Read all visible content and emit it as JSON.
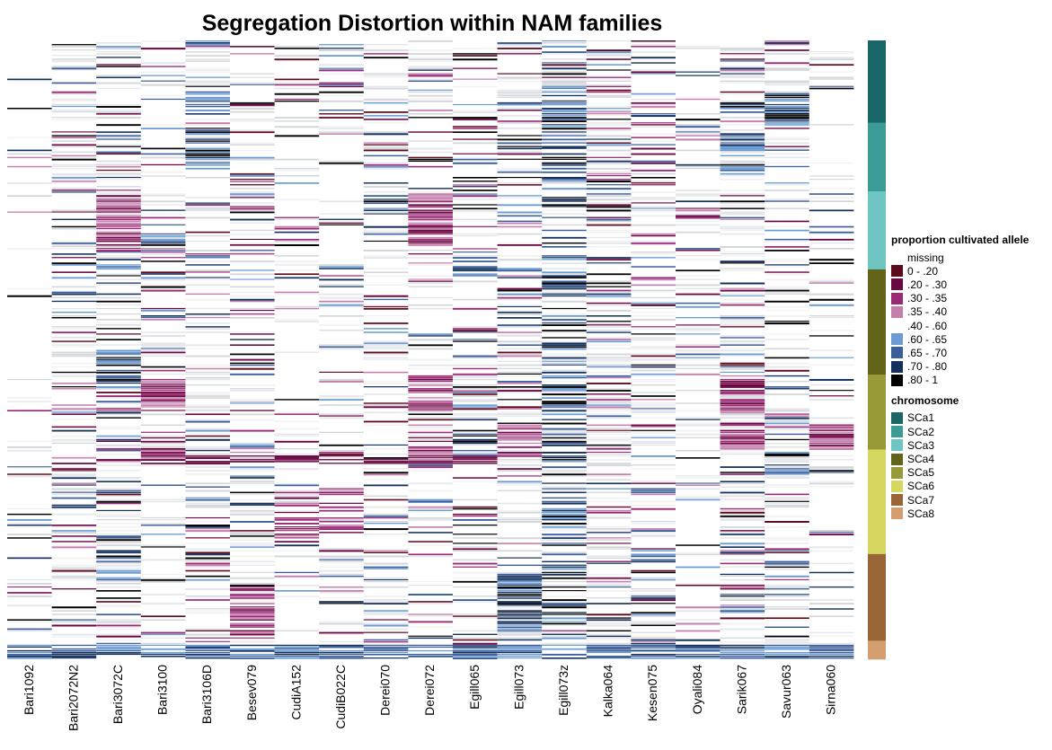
{
  "chart_data": {
    "type": "heatmap",
    "title": "Segregation Distortion within NAM families",
    "families": [
      "Bari1092",
      "Bari2072N2",
      "Bari3072C",
      "Bari3100",
      "Bari3106D",
      "Besev079",
      "CudiA152",
      "CudiB022C",
      "Derei070",
      "Derei072",
      "Egill065",
      "Egill073",
      "Egill073z",
      "Kalka064",
      "Kesen075",
      "Oyali084",
      "Sarik067",
      "Savur063",
      "Sirna060"
    ],
    "legend_proportion": {
      "title": "proportion cultivated allele",
      "bins": [
        {
          "label": "missing",
          "color": "#ffffff"
        },
        {
          "label": "0 - .20",
          "color": "#5e0a1e"
        },
        {
          "label": ".20 - .30",
          "color": "#6a0640"
        },
        {
          "label": ".30 - .35",
          "color": "#9a2a76"
        },
        {
          "label": ".35 - .40",
          "color": "#c47fad"
        },
        {
          "label": ".40 - .60",
          "color": "#ffffff"
        },
        {
          "label": ".60 - .65",
          "color": "#6a9bd3"
        },
        {
          "label": ".65 - .70",
          "color": "#3c5f9a"
        },
        {
          "label": ".70 - .80",
          "color": "#14305c"
        },
        {
          "label": ".80 - 1",
          "color": "#000000"
        }
      ]
    },
    "legend_chromosome": {
      "title": "chromosome",
      "items": [
        {
          "label": "SCa1",
          "color": "#1b6666",
          "fraction": 0.133
        },
        {
          "label": "SCa2",
          "color": "#3b9c96",
          "fraction": 0.111
        },
        {
          "label": "SCa3",
          "color": "#6ec5c2",
          "fraction": 0.126
        },
        {
          "label": "SCa4",
          "color": "#616419",
          "fraction": 0.17
        },
        {
          "label": "SCa5",
          "color": "#989a38",
          "fraction": 0.121
        },
        {
          "label": "SCa6",
          "color": "#d6d761",
          "fraction": 0.169
        },
        {
          "label": "SCa7",
          "color": "#996536",
          "fraction": 0.14
        },
        {
          "label": "SCa8",
          "color": "#d49e6e",
          "fraction": 0.03
        }
      ]
    }
  }
}
